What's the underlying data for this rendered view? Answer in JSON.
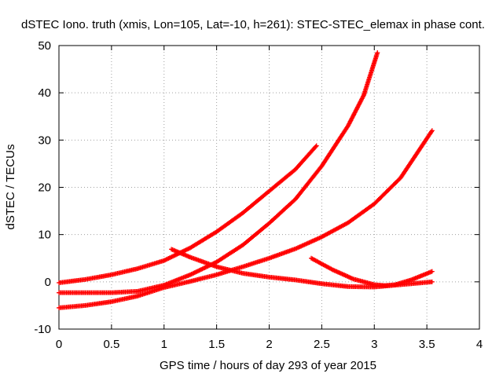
{
  "chart_data": {
    "type": "scatter",
    "title": "dSTEC Iono. truth (xmis, Lon=105, Lat=-10, h=261): STEC-STEC_elemax in phase cont.",
    "xlabel": "GPS time / hours of day 293 of year 2015",
    "ylabel": "dSTEC  / TECUs",
    "xlim": [
      0,
      4
    ],
    "ylim": [
      -10,
      50
    ],
    "x_ticks": [
      "0",
      "0.5",
      "1",
      "1.5",
      "2",
      "2.5",
      "3",
      "3.5",
      "4"
    ],
    "y_ticks": [
      "-10",
      "0",
      "10",
      "20",
      "30",
      "40",
      "50"
    ],
    "grid": true,
    "legend": "none",
    "marker": "plus",
    "color": "#ff0000",
    "series": [
      {
        "x": [
          0.0,
          0.25,
          0.5,
          0.75,
          1.0,
          1.25,
          1.5,
          1.75,
          2.0,
          2.25,
          2.45
        ],
        "y": [
          -0.2,
          0.5,
          1.5,
          2.8,
          4.5,
          7.2,
          10.6,
          14.6,
          19.2,
          23.8,
          28.8
        ]
      },
      {
        "x": [
          0.0,
          0.25,
          0.5,
          0.75,
          1.0,
          1.25,
          1.5,
          1.75,
          2.0,
          2.25,
          2.5,
          2.75,
          2.9,
          3.03
        ],
        "y": [
          -2.3,
          -2.3,
          -2.3,
          -2.0,
          -0.7,
          1.5,
          4.2,
          7.8,
          12.4,
          17.5,
          24.5,
          33.0,
          39.5,
          48.5
        ]
      },
      {
        "x": [
          0.0,
          0.25,
          0.5,
          0.75,
          1.0,
          1.25,
          1.5,
          1.75,
          2.0,
          2.25,
          2.5,
          2.75,
          3.0,
          3.25,
          3.55
        ],
        "y": [
          -5.5,
          -5.0,
          -4.2,
          -3.0,
          -1.2,
          0.1,
          1.5,
          3.2,
          5.0,
          7.0,
          9.5,
          12.5,
          16.5,
          22.0,
          32.0
        ]
      },
      {
        "x": [
          1.07,
          1.25,
          1.5,
          1.75,
          2.0,
          2.25,
          2.5,
          2.75,
          3.0,
          3.25,
          3.55
        ],
        "y": [
          6.9,
          5.2,
          3.2,
          1.8,
          1.0,
          0.4,
          -0.4,
          -1.0,
          -1.1,
          -0.6,
          0.0
        ]
      },
      {
        "x": [
          2.4,
          2.6,
          2.8,
          3.0,
          3.1,
          3.2,
          3.35,
          3.55
        ],
        "y": [
          5.0,
          2.6,
          0.6,
          -0.6,
          -0.8,
          -0.6,
          0.4,
          2.2
        ]
      }
    ]
  }
}
